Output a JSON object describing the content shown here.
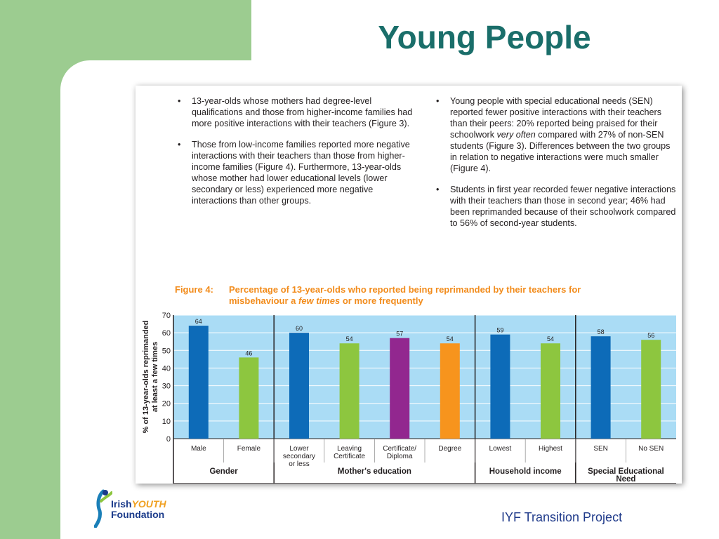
{
  "slide": {
    "title": "Young People",
    "footer": "IYF Transition Project",
    "logo": {
      "line1_a": "Irish",
      "line1_b": "YOUTH",
      "line2": "Foundation"
    }
  },
  "text": {
    "left_bullets": [
      "13-year-olds whose mothers had degree-level qualifications and those from higher-income families had more positive interactions with their teachers (Figure 3).",
      "Those from low-income families reported more negative interactions with their teachers than those from higher-income families (Figure 4). Furthermore, 13-year-olds whose mother had lower educational levels (lower secondary or less) experienced more negative interactions than other groups."
    ],
    "right_bullets": [
      "Young people with special educational needs (SEN) reported fewer positive interactions with their teachers than their peers: 20% reported being praised for their schoolwork very often compared with 27% of non-SEN students (Figure 3). Differences between the two groups in relation to negative interactions were much smaller (Figure 4).",
      "Students in first year recorded fewer negative interactions with their teachers than those in second year; 46% had been reprimanded because of their schoolwork compared to 56% of second-year students."
    ]
  },
  "figure": {
    "label": "Figure 4:",
    "title_line1": "Percentage of 13-year-olds who reported being reprimanded by their teachers for",
    "title_line2_a": "misbehaviour a ",
    "title_line2_em": "few times",
    "title_line2_b": " or more frequently"
  },
  "chart_data": {
    "type": "bar",
    "ylabel_line1": "% of 13-year-olds reprimanded",
    "ylabel_line2": "at least a few times",
    "ylim": [
      0,
      70
    ],
    "yticks": [
      "0",
      "10",
      "20",
      "30",
      "40",
      "50",
      "60",
      "70"
    ],
    "grid": true,
    "categories": [
      "Male",
      "Female",
      "Lower secondary or less",
      "Leaving Certificate",
      "Certificate/ Diploma",
      "Degree",
      "Lowest",
      "Highest",
      "SEN",
      "No SEN"
    ],
    "category_lines": [
      [
        "Male"
      ],
      [
        "Female"
      ],
      [
        "Lower",
        "secondary",
        "or less"
      ],
      [
        "Leaving",
        "Certificate"
      ],
      [
        "Certificate/",
        "Diploma"
      ],
      [
        "Degree"
      ],
      [
        "Lowest"
      ],
      [
        "Highest"
      ],
      [
        "SEN"
      ],
      [
        "No SEN"
      ]
    ],
    "values": [
      64,
      46,
      60,
      54,
      57,
      54,
      59,
      54,
      58,
      56
    ],
    "value_labels": [
      "64",
      "46",
      "60",
      "54",
      "57",
      "54",
      "59",
      "54",
      "58",
      "56"
    ],
    "bar_colors": [
      "#0d6bb8",
      "#8dc63f",
      "#0d6bb8",
      "#8dc63f",
      "#92278f",
      "#f7941d",
      "#0d6bb8",
      "#8dc63f",
      "#0d6bb8",
      "#8dc63f"
    ],
    "groups": [
      {
        "label_lines": [
          "Gender"
        ],
        "count": 2
      },
      {
        "label_lines": [
          "Mother's education"
        ],
        "count": 4
      },
      {
        "label_lines": [
          "Household income"
        ],
        "count": 2
      },
      {
        "label_lines": [
          "Special Educational",
          "Need"
        ],
        "count": 2
      }
    ],
    "plot_background": "#aadcf5",
    "accent_color": "#f28c1c"
  }
}
